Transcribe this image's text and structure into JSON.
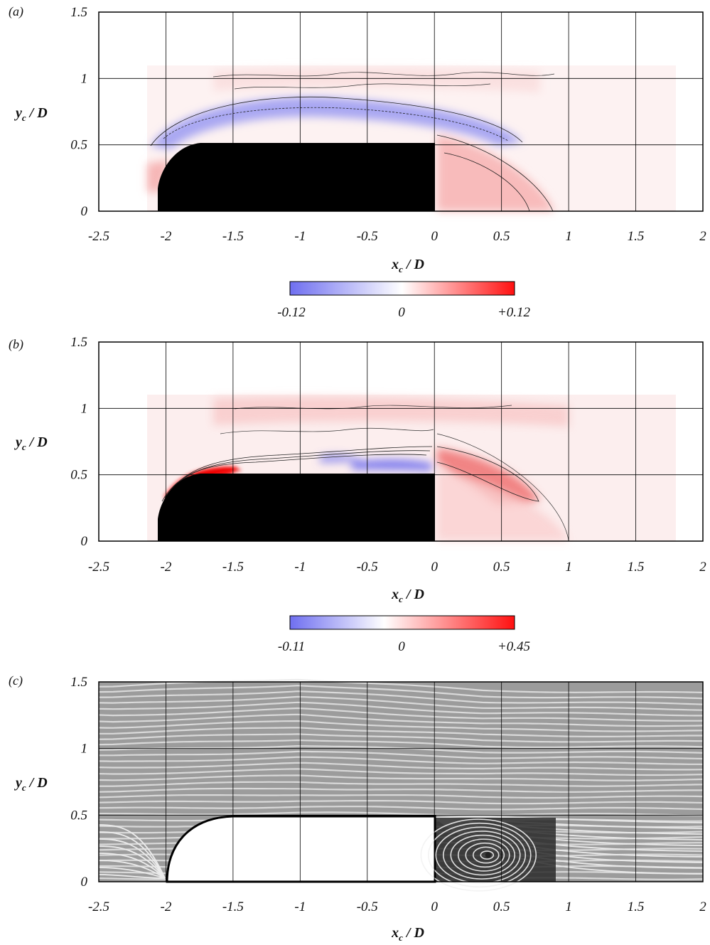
{
  "figure": {
    "panels": [
      {
        "label": "(a)",
        "xlabel_main": "x",
        "xlabel_sub": "c",
        "xlabel_rest": " / D",
        "ylabel_main": "y",
        "ylabel_sub": "c",
        "ylabel_rest": " / D",
        "kind": "contour",
        "colorbar": {
          "min_label": "-0.12",
          "mid_label": "0",
          "max_label": "+0.12",
          "colors": [
            "#6f6ff0",
            "#ffffff",
            "#ff1010"
          ]
        }
      },
      {
        "label": "(b)",
        "xlabel_main": "x",
        "xlabel_sub": "c",
        "xlabel_rest": " / D",
        "ylabel_main": "y",
        "ylabel_sub": "c",
        "ylabel_rest": " / D",
        "kind": "contour",
        "colorbar": {
          "min_label": "-0.11",
          "mid_label": "0",
          "max_label": "+0.45",
          "colors": [
            "#6f6ff0",
            "#ffffff",
            "#ff1010"
          ]
        }
      },
      {
        "label": "(c)",
        "xlabel_main": "x",
        "xlabel_sub": "c",
        "xlabel_rest": " / D",
        "ylabel_main": "y",
        "ylabel_sub": "c",
        "ylabel_rest": " / D",
        "kind": "streamlines"
      }
    ]
  },
  "chart_data": [
    {
      "type": "heatmap",
      "xlim": [
        -2.5,
        2
      ],
      "ylim": [
        0,
        1.5
      ],
      "x_ticks": [
        "-2.5",
        "-2",
        "-1.5",
        "-1",
        "-0.5",
        "0",
        "0.5",
        "1",
        "1.5",
        "2"
      ],
      "y_ticks": [
        "0",
        "0.5",
        "1",
        "1.5"
      ],
      "grid": true,
      "colorbar_range": [
        -0.12,
        0.12
      ]
    },
    {
      "type": "heatmap",
      "xlim": [
        -2.5,
        2
      ],
      "ylim": [
        0,
        1.5
      ],
      "x_ticks": [
        "-2.5",
        "-2",
        "-1.5",
        "-1",
        "-0.5",
        "0",
        "0.5",
        "1",
        "1.5",
        "2"
      ],
      "y_ticks": [
        "0",
        "0.5",
        "1",
        "1.5"
      ],
      "grid": true,
      "colorbar_range": [
        -0.11,
        0.45
      ]
    },
    {
      "type": "scatter",
      "xlim": [
        -2.5,
        2
      ],
      "ylim": [
        0,
        1.5
      ],
      "x_ticks": [
        "-2.5",
        "-2",
        "-1.5",
        "-1",
        "-0.5",
        "0",
        "0.5",
        "1",
        "1.5",
        "2"
      ],
      "y_ticks": [
        "0",
        "0.5",
        "1",
        "1.5"
      ],
      "grid": true,
      "recirculation_center": [
        0.4,
        0.2
      ]
    }
  ]
}
